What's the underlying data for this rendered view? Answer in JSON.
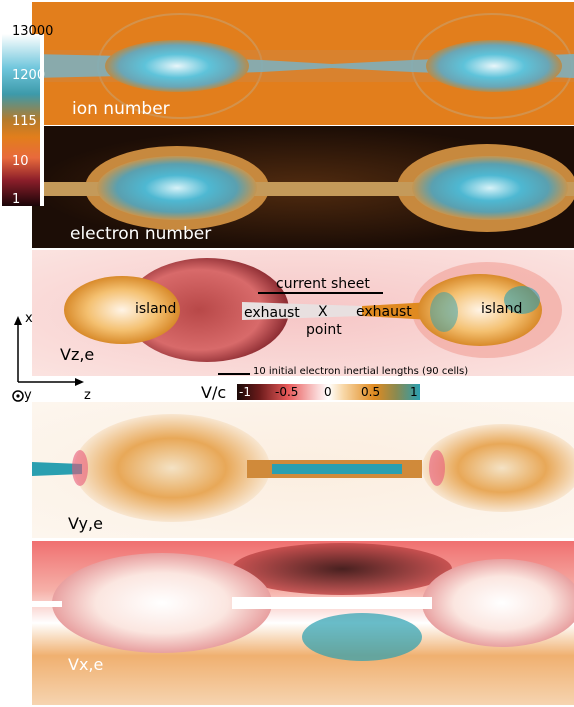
{
  "panels": {
    "ion_number": "ion number",
    "electron_number": "electron number",
    "vz": "Vz,e",
    "vy": "Vy,e",
    "vx": "Vx,e"
  },
  "density_colorbar": {
    "ticks": [
      "13000",
      "1200",
      "115",
      "10",
      "1"
    ]
  },
  "annotations": {
    "current_sheet": "current sheet",
    "island_left": "island",
    "island_right": "island",
    "exhaust_left": "exhaust",
    "exhaust_right": "exhaust",
    "x_point_x": "X",
    "x_point_word": "point",
    "scale_bar": "10 initial electron inertial lengths (90 cells)"
  },
  "axes": {
    "x": "x",
    "y": "y",
    "z": "z"
  },
  "velocity_colorbar": {
    "label": "V/c",
    "ticks": [
      "-1",
      "-0.5",
      "0",
      "0.5",
      "1"
    ],
    "colors": [
      "#1a0a08",
      "#e85a5a",
      "#ffffff",
      "#e08a20",
      "#2a9fb0"
    ]
  }
}
